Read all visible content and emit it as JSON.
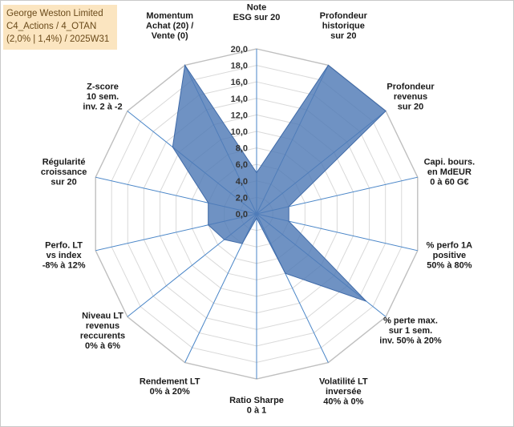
{
  "header": {
    "lines": [
      "George Weston Limited",
      "C4_Actions / 4_OTAN",
      "(2,0% | 1,4%) / 2025W31"
    ]
  },
  "chart_data": {
    "type": "radar",
    "title": "",
    "rmin": 0,
    "rmax": 20,
    "ticks": [
      "0,0",
      "2,0",
      "4,0",
      "6,0",
      "8,0",
      "10,0",
      "12,0",
      "14,0",
      "16,0",
      "18,0",
      "20,0"
    ],
    "axes": [
      {
        "label": [
          "Note",
          "ESG sur 20"
        ],
        "value": 5.0
      },
      {
        "label": [
          "Profondeur",
          "historique",
          "sur 20"
        ],
        "value": 20.0
      },
      {
        "label": [
          "Profondeur",
          "revenus",
          "sur 20"
        ],
        "value": 20.0
      },
      {
        "label": [
          "Capi. bours.",
          "en MdEUR",
          "0 à 60 G€"
        ],
        "value": 4.0
      },
      {
        "label": [
          "% perfo 1A",
          "positive",
          "50% à 80%"
        ],
        "value": 4.0
      },
      {
        "label": [
          "% perte max.",
          "sur 1 sem.",
          "inv. 50% à 20%"
        ],
        "value": 17.0
      },
      {
        "label": [
          "Volatilité LT",
          "inversée",
          "40% à 0%"
        ],
        "value": 8.0
      },
      {
        "label": [
          "Ratio Sharpe",
          "0 à 1"
        ],
        "value": 0.5
      },
      {
        "label": [
          "Rendement LT",
          "0% à 20%"
        ],
        "value": 4.0
      },
      {
        "label": [
          "Niveau LT",
          "revenus",
          "reccurents",
          "0% à 6%"
        ],
        "value": 5.0
      },
      {
        "label": [
          "Perfo. LT",
          "vs index",
          "-8% à 12%"
        ],
        "value": 6.0
      },
      {
        "label": [
          "Régularité",
          "croissance",
          "sur 20"
        ],
        "value": 6.0
      },
      {
        "label": [
          "Z-score",
          "10 sem.",
          "inv. 2 à -2"
        ],
        "value": 13.0
      },
      {
        "label": [
          "Momentum",
          "Achat (20) /",
          "Vente (0)"
        ],
        "value": 20.0
      }
    ],
    "colors": {
      "fill": "#4f7ab6",
      "stroke": "#3f6aa8",
      "grid": "#d9d9d9",
      "spoke": "#4a86c8"
    }
  }
}
